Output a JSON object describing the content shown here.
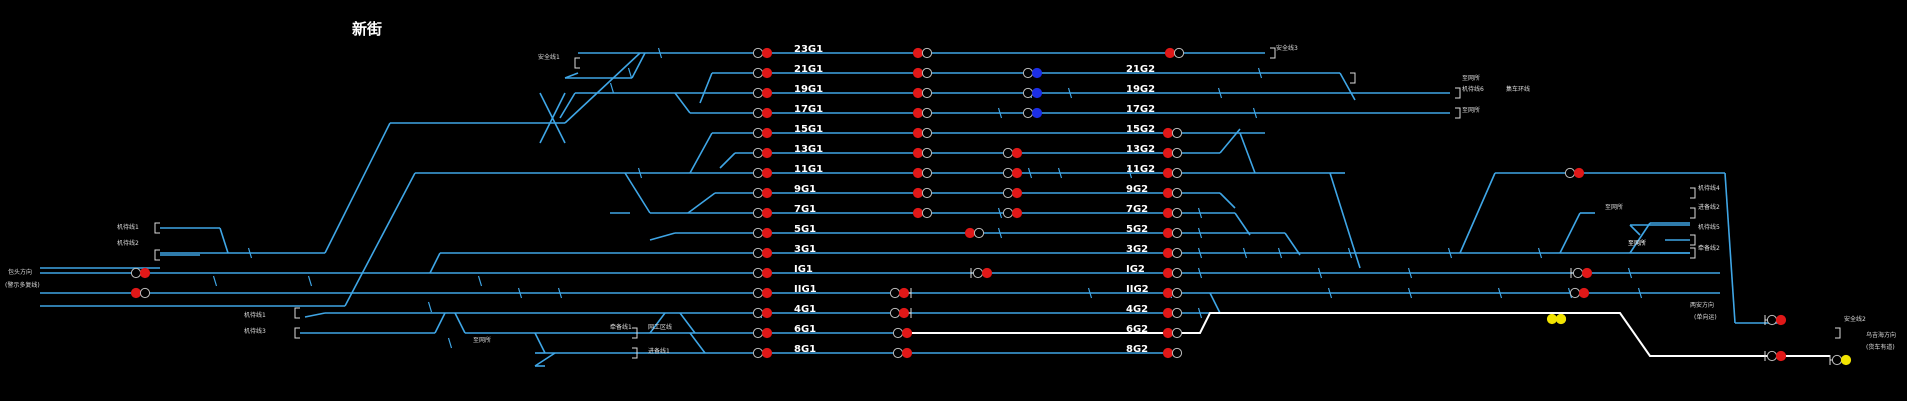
{
  "station": {
    "name": "新街"
  },
  "colors": {
    "track": "#3fa6e6",
    "route": "#ffffff",
    "signal_red": "#e01818",
    "signal_blue": "#1c2fe6",
    "signal_yellow": "#f2e400",
    "signal_off_outline": "#bbbbbb"
  },
  "tracks": {
    "left": [
      "23G1",
      "21G1",
      "19G1",
      "17G1",
      "15G1",
      "13G1",
      "11G1",
      "9G1",
      "7G1",
      "5G1",
      "3G1",
      "IG1",
      "IIG1",
      "4G1",
      "6G1",
      "8G1"
    ],
    "right": [
      "21G2",
      "19G2",
      "17G2",
      "15G2",
      "13G2",
      "11G2",
      "9G2",
      "7G2",
      "5G2",
      "3G2",
      "IG2",
      "IIG2",
      "4G2",
      "6G2",
      "8G2"
    ]
  },
  "side_labels": {
    "anquan1": "安全线1",
    "anquan3": "安全线3",
    "jichu6": "机待线6",
    "jichequhuan": "集车环线",
    "zhiwangou1": "至网所",
    "zhiwangou2": "至网所",
    "jidai1": "机待线1",
    "jidai2": "机待线2",
    "baotou": "包头方向",
    "baotou_sub": "(警示多复线)",
    "jidai4": "机待线4",
    "jinbei2": "进备线2",
    "zhiwangou3": "至网所",
    "jidai5": "机待线5",
    "zhiwangou4": "至网所",
    "jinbei2b": "牵备线2",
    "zhiwangou5": "至网所",
    "jidai1b": "机待线1",
    "jidai3": "机待线3",
    "jinbei1": "牵备线1",
    "zhiwangou6": "至网所",
    "wangqu": "网工区线",
    "jinbei1b": "进备线1",
    "lianghaifang": "两安方向",
    "lianghaifang_sub": "(单向运)",
    "anquan2": "安全线2",
    "wuhaifang": "乌吉海方向",
    "wuhaifang_sub": "(货车有道)"
  }
}
